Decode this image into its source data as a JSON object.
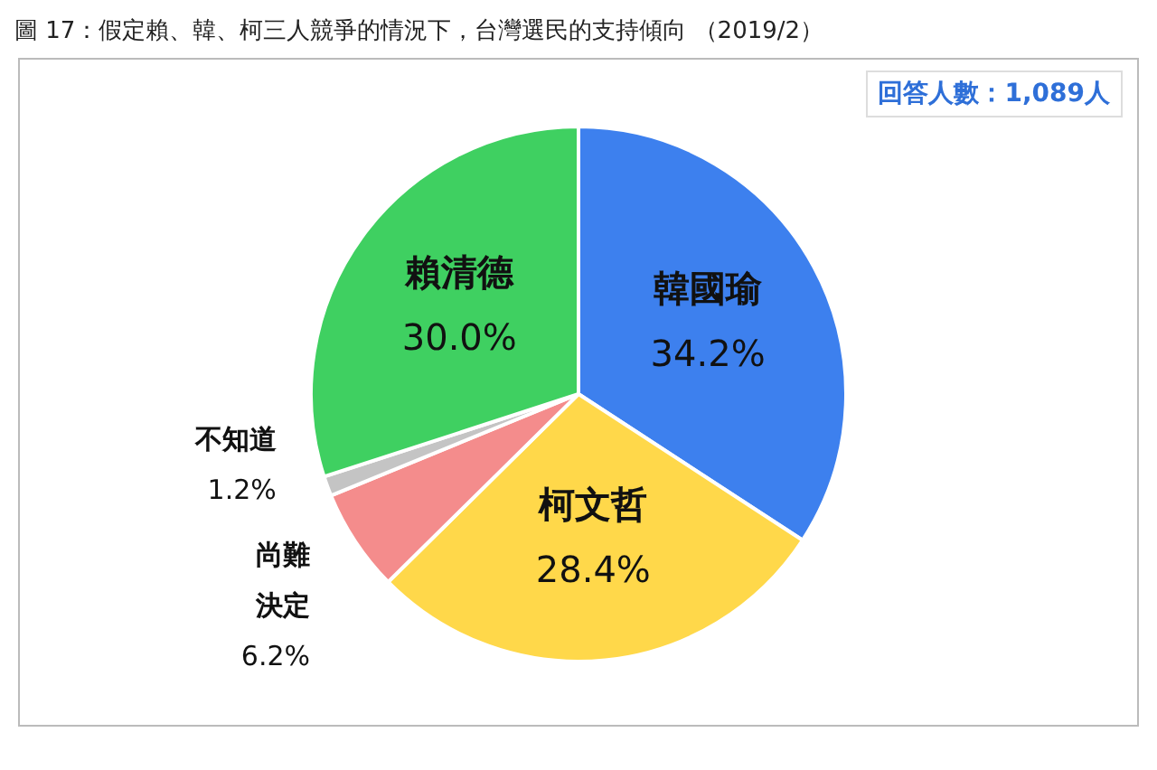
{
  "chart_data": {
    "type": "pie",
    "title": "圖 17：假定賴、韓、柯三人競爭的情況下，台灣選民的支持傾向 （2019/2）",
    "categories": [
      "韓國瑜",
      "柯文哲",
      "尚難決定",
      "不知道",
      "賴清德"
    ],
    "values": [
      34.2,
      28.4,
      6.2,
      1.2,
      30.0
    ],
    "colors": [
      "#3d80ee",
      "#ffd84a",
      "#f48c8c",
      "#c4c4c4",
      "#3fd061"
    ],
    "value_labels": [
      "34.2%",
      "28.4%",
      "6.2%",
      "1.2%",
      "30.0%"
    ],
    "annotations": [
      "回答人數：1,089人"
    ],
    "legend": false
  }
}
